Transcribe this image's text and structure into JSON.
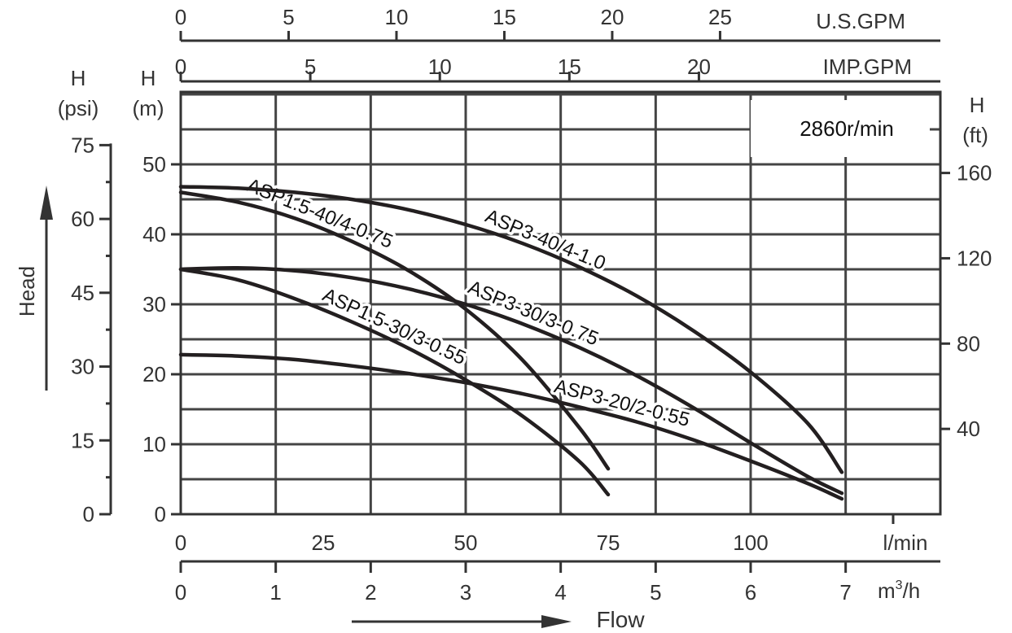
{
  "chart_data": {
    "type": "line",
    "speed_label": "2860r/min",
    "x_axis": {
      "label": "l/min",
      "range": [
        0,
        132
      ],
      "ticks": [
        0,
        25,
        50,
        75,
        100
      ],
      "tick_labels": [
        "0",
        "25",
        "50",
        "75",
        "100"
      ]
    },
    "x_axis_m3h": {
      "label": "m³/h",
      "ticks": [
        0,
        1,
        2,
        3,
        4,
        5,
        6,
        7
      ],
      "tick_labels": [
        "0",
        "1",
        "2",
        "3",
        "4",
        "5",
        "6",
        "7"
      ]
    },
    "x_axis_usgpm": {
      "label": "U.S.GPM",
      "ticks": [
        0,
        5,
        10,
        15,
        20,
        25
      ],
      "tick_labels": [
        "0",
        "5",
        "10",
        "15",
        "20",
        "25"
      ]
    },
    "x_axis_impgpm": {
      "label": "IMP.GPM",
      "ticks": [
        0,
        5,
        10,
        15,
        20
      ],
      "tick_labels": [
        "0",
        "5",
        "10",
        "15",
        "20"
      ]
    },
    "y_axis": {
      "label_top": "H",
      "label_unit": "(m)",
      "range": [
        0,
        60
      ],
      "ticks": [
        0,
        10,
        20,
        30,
        40,
        50
      ],
      "tick_labels": [
        "0",
        "10",
        "20",
        "30",
        "40",
        "50"
      ]
    },
    "y_axis_psi": {
      "label_top": "H",
      "label_unit": "(psi)",
      "ticks": [
        0,
        15,
        30,
        45,
        60,
        75
      ],
      "tick_labels": [
        "0",
        "15",
        "30",
        "45",
        "60",
        "75"
      ]
    },
    "y_axis_ft": {
      "label_top": "H",
      "label_unit": "(ft)",
      "ticks": [
        40,
        80,
        120,
        160
      ],
      "tick_labels": [
        "40",
        "80",
        "120",
        "160"
      ]
    },
    "head_label": "Head",
    "flow_label": "Flow",
    "series": [
      {
        "name": "ASP1.5-40/4-0.75",
        "x": [
          0,
          10,
          20,
          30,
          40,
          50,
          60,
          70,
          75
        ],
        "y": [
          46,
          44.6,
          42.3,
          39,
          34.8,
          29.3,
          22,
          12.3,
          6.5
        ]
      },
      {
        "name": "ASP1.5-30/3-0.55",
        "x": [
          0,
          10,
          20,
          30,
          40,
          50,
          60,
          70,
          75
        ],
        "y": [
          35,
          33.5,
          30.8,
          27.5,
          23.7,
          19.2,
          14,
          7.5,
          2.8
        ]
      },
      {
        "name": "ASP3-40/4-1.0",
        "x": [
          0,
          10,
          20,
          30,
          40,
          50,
          60,
          70,
          80,
          90,
          100,
          110,
          116
        ],
        "y": [
          46.8,
          46.6,
          46,
          45,
          43.5,
          41.4,
          38.7,
          35.3,
          31.2,
          26.2,
          20.3,
          13,
          6
        ]
      },
      {
        "name": "ASP3-30/3-0.75",
        "x": [
          0,
          10,
          20,
          30,
          40,
          50,
          60,
          70,
          80,
          90,
          100,
          110,
          116
        ],
        "y": [
          35,
          35.2,
          34.8,
          33.8,
          32.2,
          30,
          27.2,
          23.8,
          19.8,
          15.2,
          10.2,
          5.4,
          3
        ]
      },
      {
        "name": "ASP3-20/2-0.55",
        "x": [
          0,
          10,
          20,
          30,
          40,
          50,
          60,
          70,
          80,
          90,
          100,
          110,
          116
        ],
        "y": [
          22.8,
          22.6,
          22.1,
          21.2,
          20.1,
          18.8,
          17.2,
          15.3,
          13.2,
          10.6,
          7.6,
          4.4,
          2.2
        ]
      }
    ]
  }
}
